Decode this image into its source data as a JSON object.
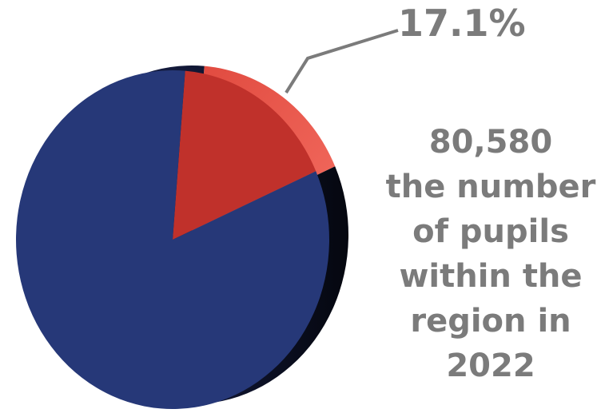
{
  "chart_data": {
    "type": "pie",
    "slices": [
      {
        "value": 17.1,
        "label": "17.1%",
        "color": "#c0312b"
      },
      {
        "value": 82.9,
        "label": "",
        "color": "#263878"
      }
    ],
    "annotation": {
      "lines": [
        "80,580",
        "the number",
        "of pupils",
        "within the",
        "region in",
        "2022"
      ]
    }
  },
  "colors": {
    "highlight_slice": "#c0312b",
    "remainder_slice": "#263878",
    "text": "#7b7b7b"
  }
}
